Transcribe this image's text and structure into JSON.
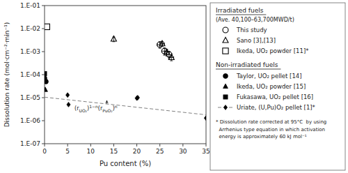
{
  "chart_data": {
    "type": "scatter",
    "xlabel": "Pu content (%)",
    "ylabel": "Dissolution rate (mol·cm⁻²·min⁻¹)",
    "xlim": [
      0,
      35
    ],
    "ylim": [
      1e-07,
      0.1
    ],
    "log": "y",
    "xticks": [
      0,
      5,
      10,
      15,
      20,
      25,
      30,
      35
    ],
    "yticks": [
      {
        "value": 1e-07,
        "label": "1.E-07"
      },
      {
        "value": 1e-06,
        "label": "1.E-06"
      },
      {
        "value": 1e-05,
        "label": "1.E-05"
      },
      {
        "value": 0.0001,
        "label": "1.E-04"
      },
      {
        "value": 0.001,
        "label": "1.E-03"
      },
      {
        "value": 0.01,
        "label": "1.E-02"
      },
      {
        "value": 0.1,
        "label": "1.E-01"
      }
    ],
    "legend": "right",
    "legend_groups": [
      {
        "title": "Irradiated fuels",
        "subtitle": "(Ave. 40,100–63,700MWD/t)",
        "series": [
          {
            "name": "This study",
            "marker": "circle-open",
            "color": "#000000",
            "x": [
              25.0,
              26.0,
              27.0
            ],
            "values": [
              0.002,
              0.00105,
              0.00075
            ],
            "xerr": [
              0.6,
              0.6,
              0.6
            ],
            "yerr_low": [
              0.0006,
              0.00035,
              0.00022
            ],
            "yerr_high": [
              0.0007,
              0.0004,
              0.00025
            ]
          },
          {
            "name": "Sano [3],[13]",
            "marker": "triangle-open",
            "color": "#000000",
            "x": [
              15.0,
              25.5,
              26.5,
              27.5
            ],
            "values": [
              0.0035,
              0.0022,
              0.00095,
              0.00055
            ],
            "xerr": [
              null,
              0.5,
              0.5,
              0.5
            ],
            "yerr": [
              0.0008,
              0.0005,
              0.0003,
              0.00015
            ]
          },
          {
            "name": "Ikeda, UO₂ powder [11]*",
            "marker": "square-open",
            "color": "#000000",
            "x": [
              0.5
            ],
            "values": [
              0.012
            ]
          }
        ]
      },
      {
        "title": "Non-irradiated fuels",
        "series": [
          {
            "name": "Taylor, UO₂ pellet [14]",
            "marker": "circle",
            "color": "#000000",
            "x": [
              0.0,
              0.3
            ],
            "values": [
              7e-05,
              5e-05
            ]
          },
          {
            "name": "Ikeda, UO₂ powder [15]",
            "marker": "triangle",
            "color": "#000000",
            "x": [
              0.15
            ],
            "values": [
              2.2e-05
            ]
          },
          {
            "name": "Fukasawa, UO₂ pellet [16]",
            "marker": "square",
            "color": "#000000",
            "x": [
              0.0
            ],
            "values": [
              0.00011
            ]
          },
          {
            "name": "Uriate, (U,Pu)O₂ pellet [1]*",
            "marker": "diamond",
            "color": "#000000",
            "x": [
              5.0,
              5.2,
              20.0,
              20.2,
              35.0
            ],
            "values": [
              1.3e-05,
              5e-06,
              9.5e-06,
              1e-05,
              1.3e-06
            ],
            "line": {
              "x": [
                0,
                35
              ],
              "values": [
                1.05e-05,
                1.8e-06
              ],
              "line_style": "dashed",
              "color": "#808080"
            }
          }
        ]
      }
    ],
    "annotations": [
      {
        "parts": [
          "(r",
          {
            "sub": "UO₂"
          },
          ")",
          {
            "sup": "1−n"
          },
          "(r",
          {
            "sub": "PuO₂"
          },
          ")",
          {
            "sup": "n"
          }
        ],
        "x": 13.5,
        "y": 7.5e-06,
        "text_x": 6.5,
        "text_y": 3.5e-06
      }
    ],
    "note": "* Dissolution rate corrected at 95°C  by using\n  Arrhenius type equation in which activation\n  energy is approximately 60 kJ mol⁻¹"
  }
}
